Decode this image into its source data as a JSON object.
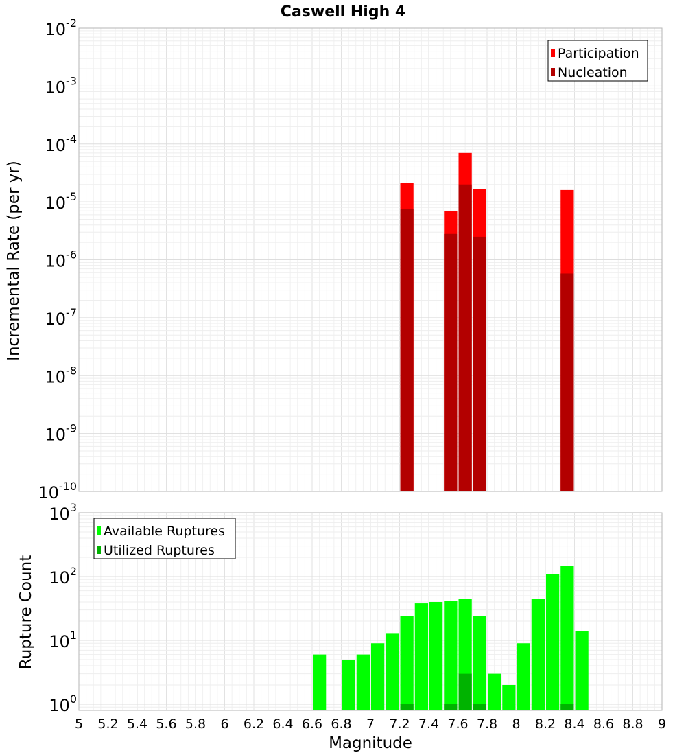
{
  "chart_data": [
    {
      "type": "bar",
      "title": "Caswell High 4",
      "xlabel": "",
      "ylabel": "Incremental Rate (per yr)",
      "yscale": "log",
      "ylim": [
        1e-10,
        0.01
      ],
      "xlim": [
        5,
        9
      ],
      "y_ticks": [
        {
          "base": "10",
          "exp": "-10",
          "value": 1e-10
        },
        {
          "base": "10",
          "exp": "-9",
          "value": 1e-09
        },
        {
          "base": "10",
          "exp": "-8",
          "value": 1e-08
        },
        {
          "base": "10",
          "exp": "-7",
          "value": 1e-07
        },
        {
          "base": "10",
          "exp": "-6",
          "value": 1e-06
        },
        {
          "base": "10",
          "exp": "-5",
          "value": 1e-05
        },
        {
          "base": "10",
          "exp": "-4",
          "value": 0.0001
        },
        {
          "base": "10",
          "exp": "-3",
          "value": 0.001
        },
        {
          "base": "10",
          "exp": "-2",
          "value": 0.01
        }
      ],
      "legend": {
        "position": "top-right",
        "entries": [
          "Participation",
          "Nucleation"
        ]
      },
      "series": [
        {
          "name": "Participation",
          "color": "#ff0000",
          "points": [
            {
              "x": 7.25,
              "y": 2.1e-05
            },
            {
              "x": 7.55,
              "y": 7e-06
            },
            {
              "x": 7.65,
              "y": 7e-05
            },
            {
              "x": 7.75,
              "y": 1.65e-05
            },
            {
              "x": 8.35,
              "y": 1.6e-05
            }
          ]
        },
        {
          "name": "Nucleation",
          "color": "#b30000",
          "points": [
            {
              "x": 7.25,
              "y": 7.5e-06
            },
            {
              "x": 7.55,
              "y": 2.8e-06
            },
            {
              "x": 7.65,
              "y": 2e-05
            },
            {
              "x": 7.75,
              "y": 2.5e-06
            },
            {
              "x": 8.35,
              "y": 5.8e-07
            }
          ]
        }
      ]
    },
    {
      "type": "bar",
      "title": "",
      "xlabel": "Magnitude",
      "ylabel": "Rupture Count",
      "yscale": "log",
      "ylim": [
        0.8,
        1000
      ],
      "xlim": [
        5,
        9
      ],
      "x_ticks": [
        "5",
        "5.2",
        "5.4",
        "5.6",
        "5.8",
        "6",
        "6.2",
        "6.4",
        "6.6",
        "6.8",
        "7",
        "7.2",
        "7.4",
        "7.6",
        "7.8",
        "8",
        "8.2",
        "8.4",
        "8.6",
        "8.8",
        "9"
      ],
      "y_ticks": [
        {
          "base": "10",
          "exp": "0",
          "value": 1
        },
        {
          "base": "10",
          "exp": "1",
          "value": 10
        },
        {
          "base": "10",
          "exp": "2",
          "value": 100
        },
        {
          "base": "10",
          "exp": "3",
          "value": 1000
        }
      ],
      "legend": {
        "position": "top-left",
        "entries": [
          "Available Ruptures",
          "Utilized Ruptures"
        ]
      },
      "series": [
        {
          "name": "Available Ruptures",
          "color": "#00ff00",
          "points": [
            {
              "x": 6.65,
              "y": 6
            },
            {
              "x": 6.85,
              "y": 5
            },
            {
              "x": 6.95,
              "y": 6
            },
            {
              "x": 7.05,
              "y": 9
            },
            {
              "x": 7.15,
              "y": 13
            },
            {
              "x": 7.25,
              "y": 24
            },
            {
              "x": 7.35,
              "y": 38
            },
            {
              "x": 7.45,
              "y": 40
            },
            {
              "x": 7.55,
              "y": 42
            },
            {
              "x": 7.65,
              "y": 45
            },
            {
              "x": 7.75,
              "y": 24
            },
            {
              "x": 7.85,
              "y": 3
            },
            {
              "x": 7.95,
              "y": 2
            },
            {
              "x": 8.05,
              "y": 9
            },
            {
              "x": 8.15,
              "y": 45
            },
            {
              "x": 8.25,
              "y": 110
            },
            {
              "x": 8.35,
              "y": 145
            },
            {
              "x": 8.45,
              "y": 14
            }
          ]
        },
        {
          "name": "Utilized Ruptures",
          "color": "#00b300",
          "points": [
            {
              "x": 7.25,
              "y": 1
            },
            {
              "x": 7.55,
              "y": 1
            },
            {
              "x": 7.65,
              "y": 3
            },
            {
              "x": 7.75,
              "y": 1
            },
            {
              "x": 8.35,
              "y": 1
            }
          ]
        }
      ]
    }
  ]
}
